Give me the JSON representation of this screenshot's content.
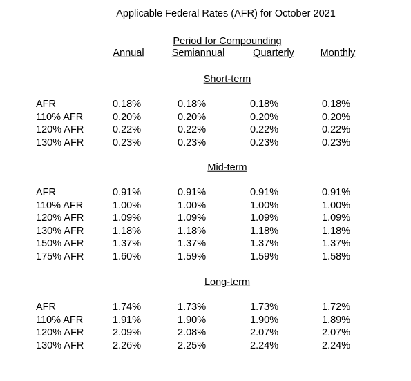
{
  "title": "Applicable Federal Rates (AFR) for October 2021",
  "period_header": "Period for Compounding",
  "columns": [
    "Annual",
    "Semiannual",
    "Quarterly",
    "Monthly"
  ],
  "sections": [
    {
      "title": "Short-term",
      "rows": [
        {
          "label": "AFR",
          "values": [
            "0.18%",
            "0.18%",
            "0.18%",
            "0.18%"
          ]
        },
        {
          "label": "110% AFR",
          "values": [
            "0.20%",
            "0.20%",
            "0.20%",
            "0.20%"
          ]
        },
        {
          "label": "120% AFR",
          "values": [
            "0.22%",
            "0.22%",
            "0.22%",
            "0.22%"
          ]
        },
        {
          "label": "130% AFR",
          "values": [
            "0.23%",
            "0.23%",
            "0.23%",
            "0.23%"
          ]
        }
      ]
    },
    {
      "title": "Mid-term",
      "rows": [
        {
          "label": "AFR",
          "values": [
            "0.91%",
            "0.91%",
            "0.91%",
            "0.91%"
          ]
        },
        {
          "label": "110% AFR",
          "values": [
            "1.00%",
            "1.00%",
            "1.00%",
            "1.00%"
          ]
        },
        {
          "label": "120% AFR",
          "values": [
            "1.09%",
            "1.09%",
            "1.09%",
            "1.09%"
          ]
        },
        {
          "label": "130% AFR",
          "values": [
            "1.18%",
            "1.18%",
            "1.18%",
            "1.18%"
          ]
        },
        {
          "label": "150% AFR",
          "values": [
            "1.37%",
            "1.37%",
            "1.37%",
            "1.37%"
          ]
        },
        {
          "label": "175% AFR",
          "values": [
            "1.60%",
            "1.59%",
            "1.59%",
            "1.58%"
          ]
        }
      ]
    },
    {
      "title": "Long-term",
      "rows": [
        {
          "label": "AFR",
          "values": [
            "1.74%",
            "1.73%",
            "1.73%",
            "1.72%"
          ]
        },
        {
          "label": "110% AFR",
          "values": [
            "1.91%",
            "1.90%",
            "1.90%",
            "1.89%"
          ]
        },
        {
          "label": "120% AFR",
          "values": [
            "2.09%",
            "2.08%",
            "2.07%",
            "2.07%"
          ]
        },
        {
          "label": "130% AFR",
          "values": [
            "2.26%",
            "2.25%",
            "2.24%",
            "2.24%"
          ]
        }
      ]
    }
  ]
}
